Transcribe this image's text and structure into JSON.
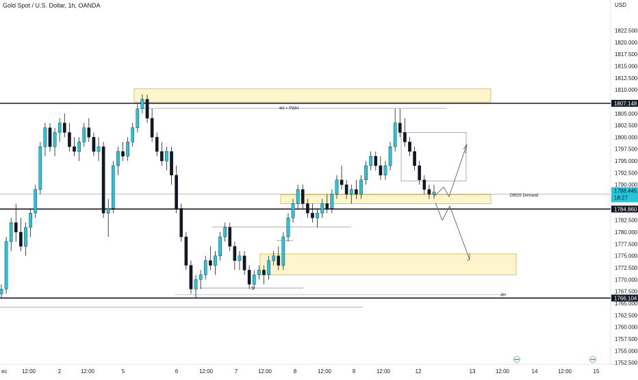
{
  "header": {
    "title": "Gold Spot / U.S. Dollar, 1h, OANDA"
  },
  "chart_data": {
    "type": "candlestick",
    "title": "Gold Spot / U.S. Dollar, 1h, OANDA",
    "currency": "USD",
    "ylim": [
      1751,
      1828
    ],
    "y_ticks": [
      "1822.500",
      "1820.000",
      "1817.500",
      "1815.000",
      "1812.500",
      "1810.000",
      "1805.000",
      "1802.500",
      "1800.000",
      "1797.500",
      "1795.000",
      "1792.500",
      "1790.000",
      "1782.500",
      "1780.000",
      "1777.500",
      "1775.000",
      "1772.500",
      "1770.000",
      "1767.500",
      "1765.000",
      "1762.500",
      "1760.000",
      "1757.500",
      "1755.000",
      "1752.500"
    ],
    "x_ticks": [
      "ec",
      "12:00",
      "2",
      "12:00",
      "5",
      "6",
      "12:00",
      "7",
      "12:00",
      "8",
      "12:00",
      "9",
      "12:00",
      "12",
      "13",
      "12:00",
      "14",
      "12:00",
      "15"
    ],
    "price_tags": [
      {
        "label": "1807.148",
        "price": 1807.148,
        "style": "dark"
      },
      {
        "label": "1784.860",
        "price": 1784.86,
        "style": "dark"
      },
      {
        "label": "1766.104",
        "price": 1766.104,
        "style": "dark"
      },
      {
        "label": "1788.445",
        "sub": "18:27",
        "price": 1788.445,
        "style": "current"
      }
    ],
    "annotations": [
      "4H + PWH",
      "DBOS Demand",
      "$",
      "4H"
    ],
    "up_color": "#26c6da",
    "down_color": "#131722",
    "zone_fill": "#fff5cc",
    "zone_border": "#d4b44a",
    "current_tag_color": "#26c6da",
    "candles": [
      [
        1767,
        1769,
        1766,
        1768
      ],
      [
        1768,
        1779,
        1767,
        1778
      ],
      [
        1778,
        1783,
        1776,
        1782
      ],
      [
        1782,
        1786,
        1778,
        1780
      ],
      [
        1780,
        1783,
        1776,
        1777
      ],
      [
        1777,
        1782,
        1775,
        1781
      ],
      [
        1781,
        1785,
        1779,
        1784
      ],
      [
        1784,
        1790,
        1783,
        1789
      ],
      [
        1789,
        1799,
        1788,
        1798
      ],
      [
        1798,
        1803,
        1796,
        1802
      ],
      [
        1802,
        1803,
        1797,
        1798
      ],
      [
        1798,
        1802,
        1796,
        1801
      ],
      [
        1801,
        1804,
        1799,
        1803
      ],
      [
        1803,
        1805,
        1800,
        1801
      ],
      [
        1801,
        1803,
        1797,
        1798
      ],
      [
        1798,
        1800,
        1796,
        1797
      ],
      [
        1797,
        1800,
        1795,
        1799
      ],
      [
        1799,
        1803,
        1798,
        1802
      ],
      [
        1802,
        1804,
        1799,
        1800
      ],
      [
        1800,
        1801,
        1796,
        1797
      ],
      [
        1797,
        1800,
        1795,
        1798
      ],
      [
        1798,
        1799,
        1783,
        1784
      ],
      [
        1784,
        1787,
        1779,
        1785
      ],
      [
        1785,
        1795,
        1784,
        1794
      ],
      [
        1794,
        1798,
        1792,
        1797
      ],
      [
        1797,
        1799,
        1795,
        1796
      ],
      [
        1796,
        1800,
        1795,
        1799
      ],
      [
        1799,
        1803,
        1798,
        1802
      ],
      [
        1802,
        1807,
        1801,
        1806
      ],
      [
        1806,
        1809,
        1805,
        1808
      ],
      [
        1808,
        1809,
        1803,
        1804
      ],
      [
        1804,
        1806,
        1799,
        1800
      ],
      [
        1800,
        1801,
        1796,
        1797
      ],
      [
        1797,
        1799,
        1794,
        1795
      ],
      [
        1795,
        1798,
        1793,
        1797
      ],
      [
        1797,
        1798,
        1790,
        1792
      ],
      [
        1792,
        1794,
        1784,
        1785
      ],
      [
        1785,
        1786,
        1778,
        1779
      ],
      [
        1779,
        1780,
        1772,
        1773
      ],
      [
        1773,
        1774,
        1767,
        1768
      ],
      [
        1768,
        1771,
        1766,
        1770
      ],
      [
        1770,
        1772,
        1768,
        1771
      ],
      [
        1771,
        1775,
        1770,
        1774
      ],
      [
        1774,
        1777,
        1772,
        1773
      ],
      [
        1773,
        1776,
        1771,
        1775
      ],
      [
        1775,
        1780,
        1774,
        1779
      ],
      [
        1779,
        1782,
        1778,
        1781
      ],
      [
        1781,
        1782,
        1776,
        1777
      ],
      [
        1777,
        1778,
        1772,
        1774
      ],
      [
        1774,
        1776,
        1772,
        1775
      ],
      [
        1775,
        1776,
        1771,
        1772
      ],
      [
        1772,
        1773,
        1768,
        1769
      ],
      [
        1769,
        1772,
        1768,
        1771
      ],
      [
        1771,
        1773,
        1770,
        1772
      ],
      [
        1772,
        1773,
        1769,
        1771
      ],
      [
        1771,
        1775,
        1770,
        1774
      ],
      [
        1774,
        1776,
        1773,
        1775
      ],
      [
        1775,
        1777,
        1772,
        1773
      ],
      [
        1773,
        1780,
        1772,
        1779
      ],
      [
        1779,
        1784,
        1778,
        1783
      ],
      [
        1783,
        1787,
        1782,
        1786
      ],
      [
        1786,
        1790,
        1785,
        1789
      ],
      [
        1789,
        1790,
        1785,
        1786
      ],
      [
        1786,
        1787,
        1783,
        1784
      ],
      [
        1784,
        1786,
        1782,
        1783
      ],
      [
        1783,
        1785,
        1781,
        1784
      ],
      [
        1784,
        1787,
        1783,
        1786
      ],
      [
        1786,
        1788,
        1784,
        1785
      ],
      [
        1785,
        1789,
        1784,
        1788
      ],
      [
        1788,
        1792,
        1787,
        1791
      ],
      [
        1791,
        1794,
        1789,
        1790
      ],
      [
        1790,
        1791,
        1787,
        1788
      ],
      [
        1788,
        1790,
        1786,
        1789
      ],
      [
        1789,
        1791,
        1787,
        1788
      ],
      [
        1788,
        1792,
        1787,
        1791
      ],
      [
        1791,
        1795,
        1790,
        1794
      ],
      [
        1794,
        1797,
        1793,
        1796
      ],
      [
        1796,
        1797,
        1793,
        1794
      ],
      [
        1794,
        1796,
        1791,
        1792
      ],
      [
        1792,
        1795,
        1791,
        1794
      ],
      [
        1794,
        1799,
        1793,
        1798
      ],
      [
        1798,
        1806,
        1797,
        1803
      ],
      [
        1803,
        1806,
        1800,
        1801
      ],
      [
        1801,
        1804,
        1798,
        1799
      ],
      [
        1799,
        1800,
        1796,
        1797
      ],
      [
        1797,
        1798,
        1793,
        1794
      ],
      [
        1794,
        1795,
        1790,
        1791
      ],
      [
        1791,
        1792,
        1788,
        1789
      ],
      [
        1789,
        1790,
        1787,
        1788
      ],
      [
        1788,
        1790,
        1787,
        1788.445
      ]
    ]
  }
}
